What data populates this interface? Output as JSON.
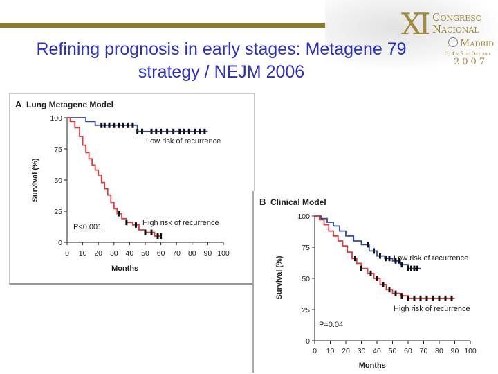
{
  "slide": {
    "title_line1": "Refining prognosis in early stages: Metagene 79",
    "title_line2": "strategy / NEJM 2006"
  },
  "logo": {
    "roman": "XI",
    "line1": "Congreso",
    "line2": "Nacional",
    "line3": "Madrid",
    "dates": "3, 4 y 5 de Octubre",
    "year": "2007"
  },
  "chart_data": [
    {
      "type": "line",
      "panel": "A",
      "title": "Lung Metagene Model",
      "xlabel": "Months",
      "ylabel": "Survival (%)",
      "xlim": [
        0,
        100
      ],
      "ylim": [
        0,
        100
      ],
      "xticks": [
        0,
        10,
        20,
        30,
        40,
        50,
        60,
        70,
        80,
        90,
        100
      ],
      "yticks": [
        0,
        25,
        50,
        75,
        100
      ],
      "annotation": "P<0.001",
      "series": [
        {
          "name": "Low risk of recurrence",
          "color": "#2e4aa8",
          "x": [
            0,
            8,
            12,
            15,
            18,
            22,
            25,
            32,
            45,
            65,
            70,
            90
          ],
          "y": [
            100,
            100,
            97,
            97,
            94,
            94,
            94,
            94,
            89,
            89,
            89,
            89
          ],
          "censor_x": [
            22,
            24,
            27,
            30,
            33,
            36,
            39,
            42,
            45,
            48,
            54,
            57,
            60,
            64,
            68,
            72,
            75,
            78,
            82,
            85,
            88
          ]
        },
        {
          "name": "High risk of recurrence",
          "color": "#e03a3a",
          "x": [
            0,
            2,
            5,
            8,
            10,
            12,
            14,
            16,
            18,
            20,
            22,
            24,
            26,
            28,
            30,
            32,
            35,
            38,
            42,
            46,
            50,
            56,
            60
          ],
          "y": [
            100,
            97,
            92,
            85,
            78,
            72,
            67,
            62,
            58,
            54,
            48,
            43,
            38,
            32,
            27,
            23,
            19,
            16,
            14,
            10,
            8,
            5,
            5
          ],
          "censor_x": [
            33,
            38,
            44,
            50,
            54,
            58,
            60
          ]
        }
      ]
    },
    {
      "type": "line",
      "panel": "B",
      "title": "Clinical Model",
      "xlabel": "Months",
      "ylabel": "Survival (%)",
      "xlim": [
        0,
        100
      ],
      "ylim": [
        0,
        100
      ],
      "xticks": [
        0,
        10,
        20,
        30,
        40,
        50,
        60,
        70,
        80,
        90,
        100
      ],
      "yticks": [
        0,
        25,
        50,
        75,
        100
      ],
      "annotation": "P=0.04",
      "series": [
        {
          "name": "Low risk of recurrence",
          "color": "#2e4aa8",
          "x": [
            0,
            4,
            8,
            12,
            16,
            20,
            25,
            30,
            35,
            40,
            45,
            50,
            55,
            60,
            68
          ],
          "y": [
            100,
            98,
            95,
            92,
            88,
            84,
            80,
            77,
            72,
            68,
            66,
            64,
            61,
            58,
            58
          ],
          "censor_x": [
            34,
            38,
            42,
            46,
            48,
            52,
            54,
            56,
            60,
            62,
            64,
            66
          ]
        },
        {
          "name": "High risk of recurrence",
          "color": "#e03a3a",
          "x": [
            0,
            3,
            6,
            9,
            12,
            15,
            18,
            21,
            24,
            27,
            30,
            34,
            38,
            42,
            46,
            50,
            55,
            60,
            90
          ],
          "y": [
            100,
            97,
            93,
            88,
            84,
            80,
            76,
            71,
            66,
            62,
            58,
            54,
            50,
            45,
            41,
            38,
            36,
            34,
            34
          ],
          "censor_x": [
            26,
            30,
            36,
            40,
            44,
            48,
            52,
            56,
            60,
            64,
            68,
            72,
            76,
            80,
            84,
            88
          ]
        }
      ]
    }
  ]
}
